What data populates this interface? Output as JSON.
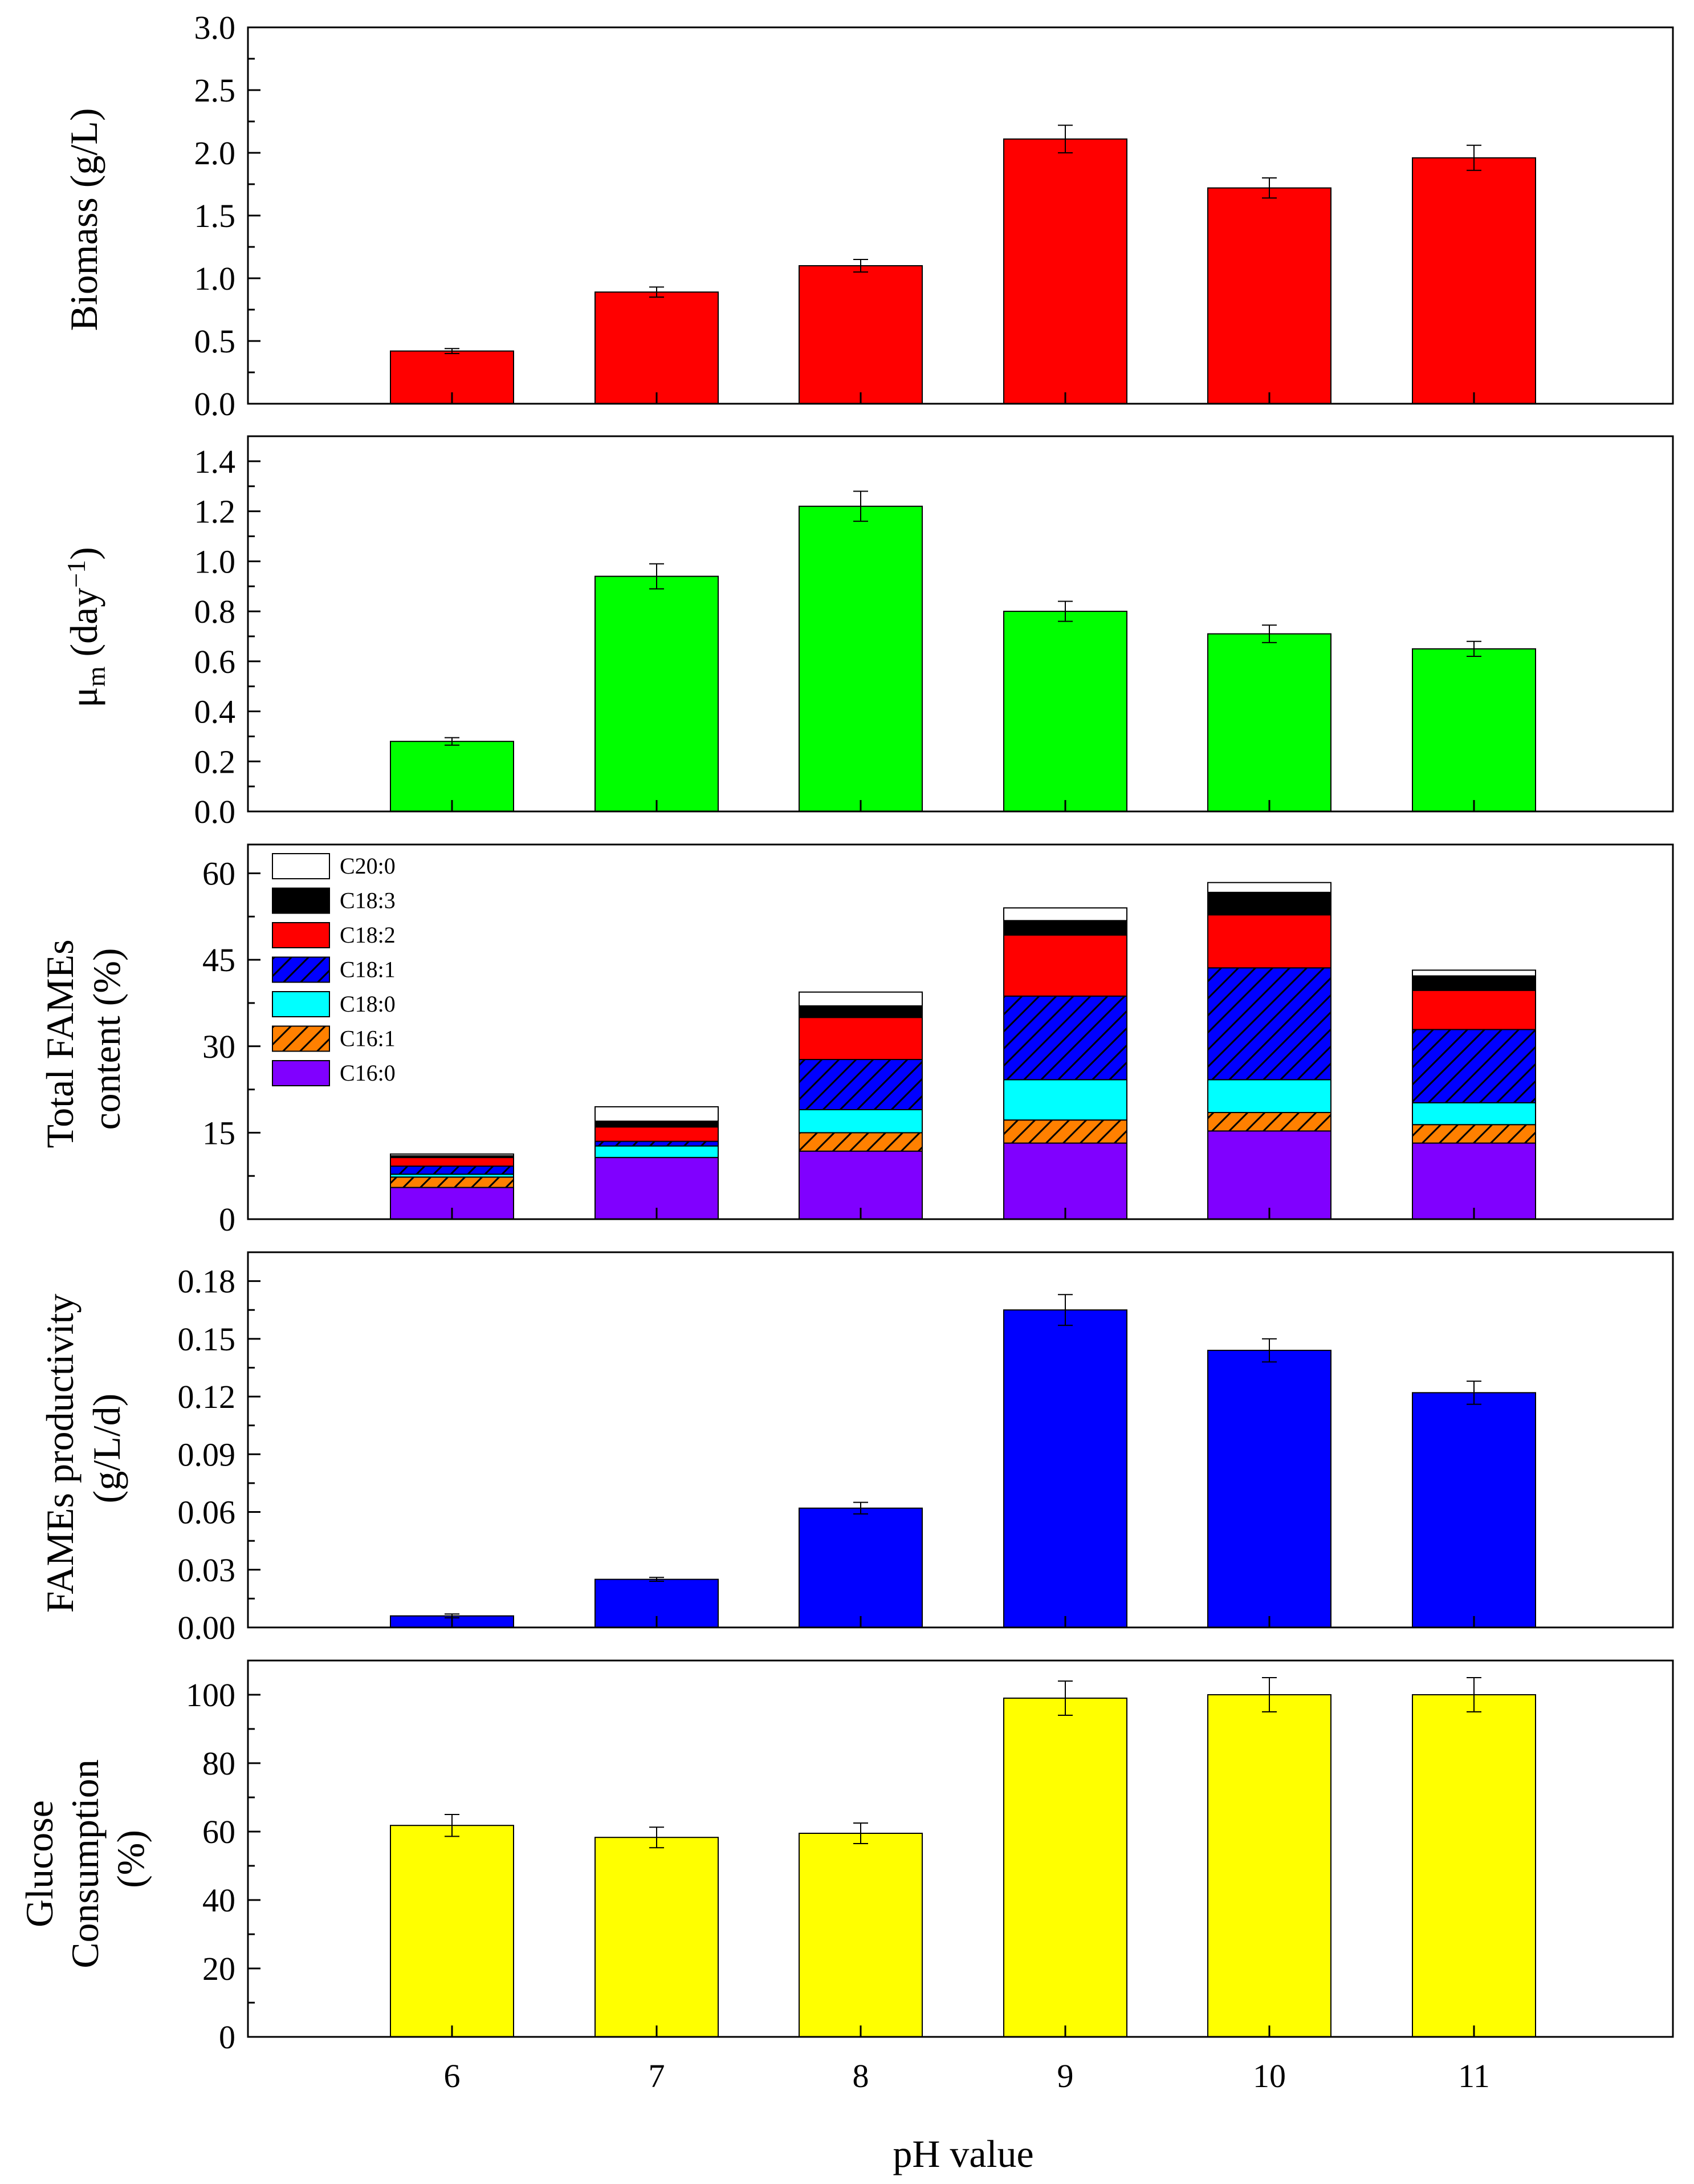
{
  "xlabel": "pH value",
  "x_ticks": [
    "6",
    "7",
    "8",
    "9",
    "10",
    "11"
  ],
  "chart_data": [
    {
      "type": "bar",
      "categories": [
        "6",
        "7",
        "8",
        "9",
        "10",
        "11"
      ],
      "series": [
        {
          "values": [
            0.42,
            0.89,
            1.1,
            2.11,
            1.72,
            1.96
          ],
          "errors": [
            0.02,
            0.04,
            0.05,
            0.11,
            0.08,
            0.1
          ],
          "color": "#ff0000"
        }
      ],
      "ylabel": "Biomass (g/L)",
      "ylim": [
        0,
        3.0
      ],
      "yticks": [
        "0.0",
        "0.5",
        "1.0",
        "1.5",
        "2.0",
        "2.5",
        "3.0"
      ]
    },
    {
      "type": "bar",
      "categories": [
        "6",
        "7",
        "8",
        "9",
        "10",
        "11"
      ],
      "series": [
        {
          "values": [
            0.28,
            0.94,
            1.22,
            0.8,
            0.71,
            0.65
          ],
          "errors": [
            0.015,
            0.05,
            0.06,
            0.04,
            0.035,
            0.03
          ],
          "color": "#00ff00"
        }
      ],
      "ylabel_main": "μ",
      "ylabel_sub": "m",
      "ylabel_mid": " (day",
      "ylabel_sup": "−1",
      "ylabel_end": ")",
      "ylim": [
        0,
        1.5
      ],
      "yticks": [
        "0.0",
        "0.2",
        "0.4",
        "0.6",
        "0.8",
        "1.0",
        "1.2",
        "1.4"
      ]
    },
    {
      "type": "bar",
      "stacked": true,
      "categories": [
        "6",
        "7",
        "8",
        "9",
        "10",
        "11"
      ],
      "series": [
        {
          "name": "C16:0",
          "values": [
            5.5,
            10.7,
            11.8,
            13.2,
            15.3,
            13.2
          ],
          "color": "#8000ff",
          "hatch": false
        },
        {
          "name": "C16:1",
          "values": [
            1.8,
            0.0,
            3.2,
            4.0,
            3.2,
            3.2
          ],
          "color": "#ff8000",
          "hatch": true
        },
        {
          "name": "C18:0",
          "values": [
            0.5,
            2.0,
            4.0,
            7.0,
            5.7,
            3.8
          ],
          "color": "#00ffff",
          "hatch": false
        },
        {
          "name": "C18:1",
          "values": [
            1.4,
            0.8,
            8.7,
            14.5,
            19.4,
            12.7
          ],
          "color": "#0000ff",
          "hatch": true
        },
        {
          "name": "C18:2",
          "values": [
            1.5,
            2.5,
            7.3,
            10.6,
            9.2,
            6.8
          ],
          "color": "#ff0000",
          "hatch": false
        },
        {
          "name": "C18:3",
          "values": [
            0.3,
            1.0,
            2.0,
            2.5,
            3.9,
            2.5
          ],
          "color": "#000000",
          "hatch": false
        },
        {
          "name": "C20:0",
          "values": [
            0.3,
            2.5,
            2.4,
            2.2,
            1.7,
            1.0
          ],
          "color": "#ffffff",
          "hatch": false
        }
      ],
      "ylabel_lines": [
        "Total FAMEs",
        "content (%)"
      ],
      "ylim": [
        0,
        65
      ],
      "yticks": [
        "0",
        "15",
        "30",
        "45",
        "60"
      ],
      "legend_position": "top-left"
    },
    {
      "type": "bar",
      "categories": [
        "6",
        "7",
        "8",
        "9",
        "10",
        "11"
      ],
      "series": [
        {
          "values": [
            0.006,
            0.025,
            0.062,
            0.165,
            0.144,
            0.122
          ],
          "errors": [
            0.001,
            0.001,
            0.003,
            0.008,
            0.006,
            0.006
          ],
          "color": "#0000ff"
        }
      ],
      "ylabel_lines": [
        "FAMEs productivity",
        "(g/L/d)"
      ],
      "ylim": [
        0,
        0.195
      ],
      "yticks": [
        "0.00",
        "0.03",
        "0.06",
        "0.09",
        "0.12",
        "0.15",
        "0.18"
      ]
    },
    {
      "type": "bar",
      "categories": [
        "6",
        "7",
        "8",
        "9",
        "10",
        "11"
      ],
      "series": [
        {
          "values": [
            61.8,
            58.3,
            59.5,
            99.0,
            100.0,
            100.0
          ],
          "errors": [
            3.2,
            3.0,
            3.0,
            5.0,
            5.0,
            5.0
          ],
          "color": "#ffff00"
        }
      ],
      "ylabel_lines": [
        "Glucose",
        "Consumption",
        "(%)"
      ],
      "ylim": [
        0,
        110
      ],
      "yticks": [
        "0",
        "20",
        "40",
        "60",
        "80",
        "100"
      ]
    }
  ]
}
